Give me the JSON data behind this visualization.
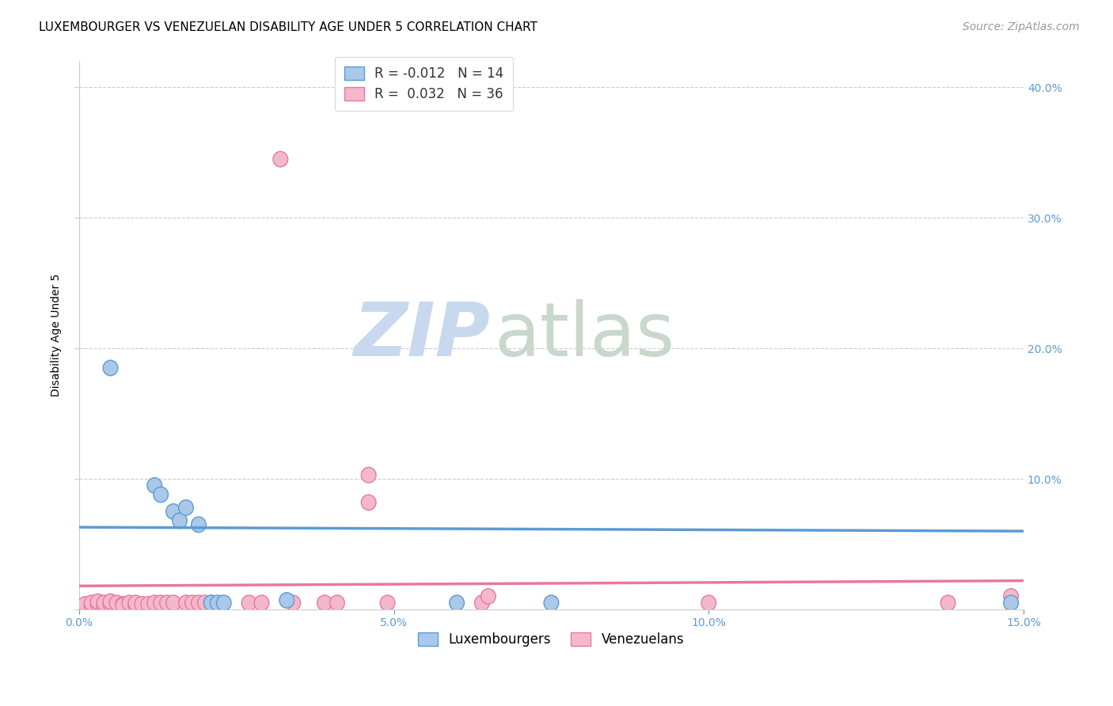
{
  "title": "LUXEMBOURGER VS VENEZUELAN DISABILITY AGE UNDER 5 CORRELATION CHART",
  "source": "Source: ZipAtlas.com",
  "ylabel": "Disability Age Under 5",
  "xlim": [
    0.0,
    0.15
  ],
  "ylim": [
    0.0,
    0.42
  ],
  "xticks": [
    0.0,
    0.05,
    0.1,
    0.15
  ],
  "xtick_labels": [
    "0.0%",
    "5.0%",
    "10.0%",
    "15.0%"
  ],
  "yticks": [
    0.0,
    0.1,
    0.2,
    0.3,
    0.4
  ],
  "luxembourger_points": [
    [
      0.005,
      0.185
    ],
    [
      0.012,
      0.095
    ],
    [
      0.013,
      0.088
    ],
    [
      0.015,
      0.075
    ],
    [
      0.016,
      0.068
    ],
    [
      0.017,
      0.078
    ],
    [
      0.019,
      0.065
    ],
    [
      0.021,
      0.005
    ],
    [
      0.022,
      0.005
    ],
    [
      0.023,
      0.005
    ],
    [
      0.033,
      0.007
    ],
    [
      0.06,
      0.005
    ],
    [
      0.075,
      0.005
    ],
    [
      0.148,
      0.005
    ]
  ],
  "venezuelan_points": [
    [
      0.001,
      0.004
    ],
    [
      0.002,
      0.003
    ],
    [
      0.002,
      0.005
    ],
    [
      0.003,
      0.004
    ],
    [
      0.003,
      0.006
    ],
    [
      0.004,
      0.003
    ],
    [
      0.004,
      0.005
    ],
    [
      0.005,
      0.004
    ],
    [
      0.005,
      0.006
    ],
    [
      0.006,
      0.005
    ],
    [
      0.007,
      0.004
    ],
    [
      0.007,
      0.003
    ],
    [
      0.008,
      0.005
    ],
    [
      0.009,
      0.003
    ],
    [
      0.009,
      0.005
    ],
    [
      0.01,
      0.004
    ],
    [
      0.011,
      0.004
    ],
    [
      0.012,
      0.005
    ],
    [
      0.013,
      0.005
    ],
    [
      0.014,
      0.005
    ],
    [
      0.015,
      0.005
    ],
    [
      0.017,
      0.005
    ],
    [
      0.018,
      0.005
    ],
    [
      0.019,
      0.005
    ],
    [
      0.02,
      0.005
    ],
    [
      0.021,
      0.005
    ],
    [
      0.027,
      0.005
    ],
    [
      0.029,
      0.005
    ],
    [
      0.034,
      0.005
    ],
    [
      0.039,
      0.005
    ],
    [
      0.041,
      0.005
    ],
    [
      0.049,
      0.005
    ],
    [
      0.064,
      0.005
    ],
    [
      0.032,
      0.345
    ],
    [
      0.046,
      0.103
    ],
    [
      0.046,
      0.082
    ],
    [
      0.065,
      0.01
    ],
    [
      0.1,
      0.005
    ],
    [
      0.138,
      0.005
    ],
    [
      0.148,
      0.01
    ]
  ],
  "lux_color": "#5b9bd5",
  "lux_color_fill": "#aac8e8",
  "ven_color": "#e8799a",
  "ven_color_fill": "#f4b8cc",
  "lux_line_y0": 0.063,
  "lux_line_y1": 0.06,
  "ven_line_y0": 0.018,
  "ven_line_y1": 0.022,
  "background_color": "#ffffff",
  "grid_color": "#cccccc",
  "watermark_zip": "ZIP",
  "watermark_atlas": "atlas",
  "watermark_color_zip": "#c8d8ee",
  "watermark_color_atlas": "#c8d8cc",
  "title_fontsize": 11,
  "axis_label_fontsize": 10,
  "tick_fontsize": 10,
  "source_fontsize": 10,
  "legend_fontsize": 12
}
